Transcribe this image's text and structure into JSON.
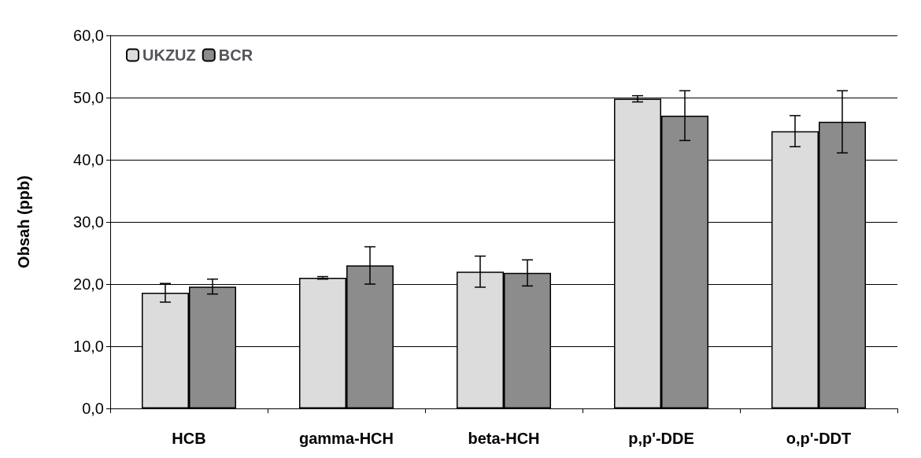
{
  "chart_data": {
    "type": "bar",
    "ylabel": "Obsah (ppb)",
    "categories": [
      "HCB",
      "gamma-HCH",
      "beta-HCH",
      "p,p'-DDE",
      "o,p'-DDT"
    ],
    "series": [
      {
        "name": "UKZUZ",
        "color": "#dcdcdc",
        "values": [
          18.6,
          21.0,
          22.0,
          49.8,
          44.6
        ],
        "errors": [
          1.5,
          0.2,
          2.5,
          0.5,
          2.5
        ]
      },
      {
        "name": "BCR",
        "color": "#8c8c8c",
        "values": [
          19.6,
          23.0,
          21.8,
          47.1,
          46.1
        ],
        "errors": [
          1.2,
          3.0,
          2.1,
          4.0,
          5.0
        ]
      }
    ],
    "ylim": [
      0,
      60
    ],
    "yticks": [
      {
        "value": 0,
        "label": "0,0"
      },
      {
        "value": 10,
        "label": "10,0"
      },
      {
        "value": 20,
        "label": "20,0"
      },
      {
        "value": 30,
        "label": "30,0"
      },
      {
        "value": 40,
        "label": "40,0"
      },
      {
        "value": 50,
        "label": "50,0"
      },
      {
        "value": 60,
        "label": "60,0"
      }
    ],
    "grid": "y",
    "legend": "top left"
  }
}
